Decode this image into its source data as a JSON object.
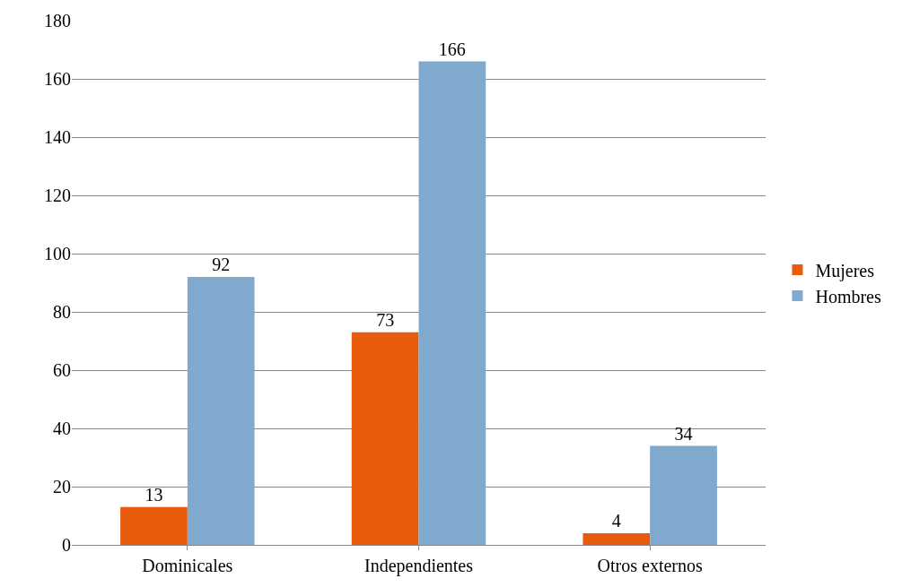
{
  "chart_data": {
    "type": "bar",
    "categories": [
      "Dominicales",
      "Independientes",
      "Otros externos"
    ],
    "series": [
      {
        "name": "Mujeres",
        "color": "#e85a0c",
        "values": [
          13,
          73,
          4
        ]
      },
      {
        "name": "Hombres",
        "color": "#7faacd",
        "values": [
          92,
          166,
          34
        ]
      }
    ],
    "ylim": [
      0,
      180
    ],
    "yticks": [
      0,
      20,
      40,
      60,
      80,
      100,
      120,
      140,
      160,
      180
    ],
    "grid": "y",
    "legend": "right",
    "data_labels": true
  }
}
